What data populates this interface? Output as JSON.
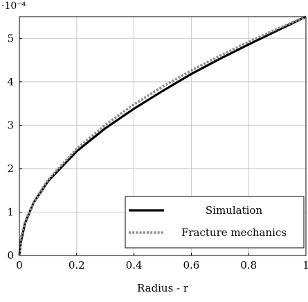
{
  "chart_data": {
    "type": "line",
    "title": "",
    "xlabel": "Radius - r",
    "ylabel": "",
    "y_scale_label": "·10⁻⁴",
    "y_scale_factor": 0.0001,
    "xlim": [
      0,
      1
    ],
    "ylim": [
      0,
      5.5
    ],
    "x_ticks": [
      "0",
      "0.2",
      "0.4",
      "0.6",
      "0.8",
      "1"
    ],
    "y_ticks": [
      "0",
      "1",
      "2",
      "3",
      "4",
      "5"
    ],
    "grid": true,
    "legend_position": "bottom-right",
    "x": [
      0,
      0.005,
      0.02,
      0.05,
      0.1,
      0.2,
      0.3,
      0.4,
      0.5,
      0.6,
      0.7,
      0.8,
      0.9,
      1.0
    ],
    "series": [
      {
        "name": "Simulation",
        "color": "#000000",
        "style": "solid",
        "values": [
          0,
          0.3,
          0.75,
          1.22,
          1.71,
          2.4,
          2.93,
          3.38,
          3.79,
          4.18,
          4.53,
          4.86,
          5.18,
          5.5
        ]
      },
      {
        "name": "Fracture mechanics",
        "color": "#8c8c8c",
        "style": "dotted",
        "values": [
          0,
          0.39,
          0.78,
          1.23,
          1.74,
          2.46,
          3.01,
          3.48,
          3.89,
          4.26,
          4.6,
          4.92,
          5.22,
          5.5
        ]
      }
    ]
  }
}
